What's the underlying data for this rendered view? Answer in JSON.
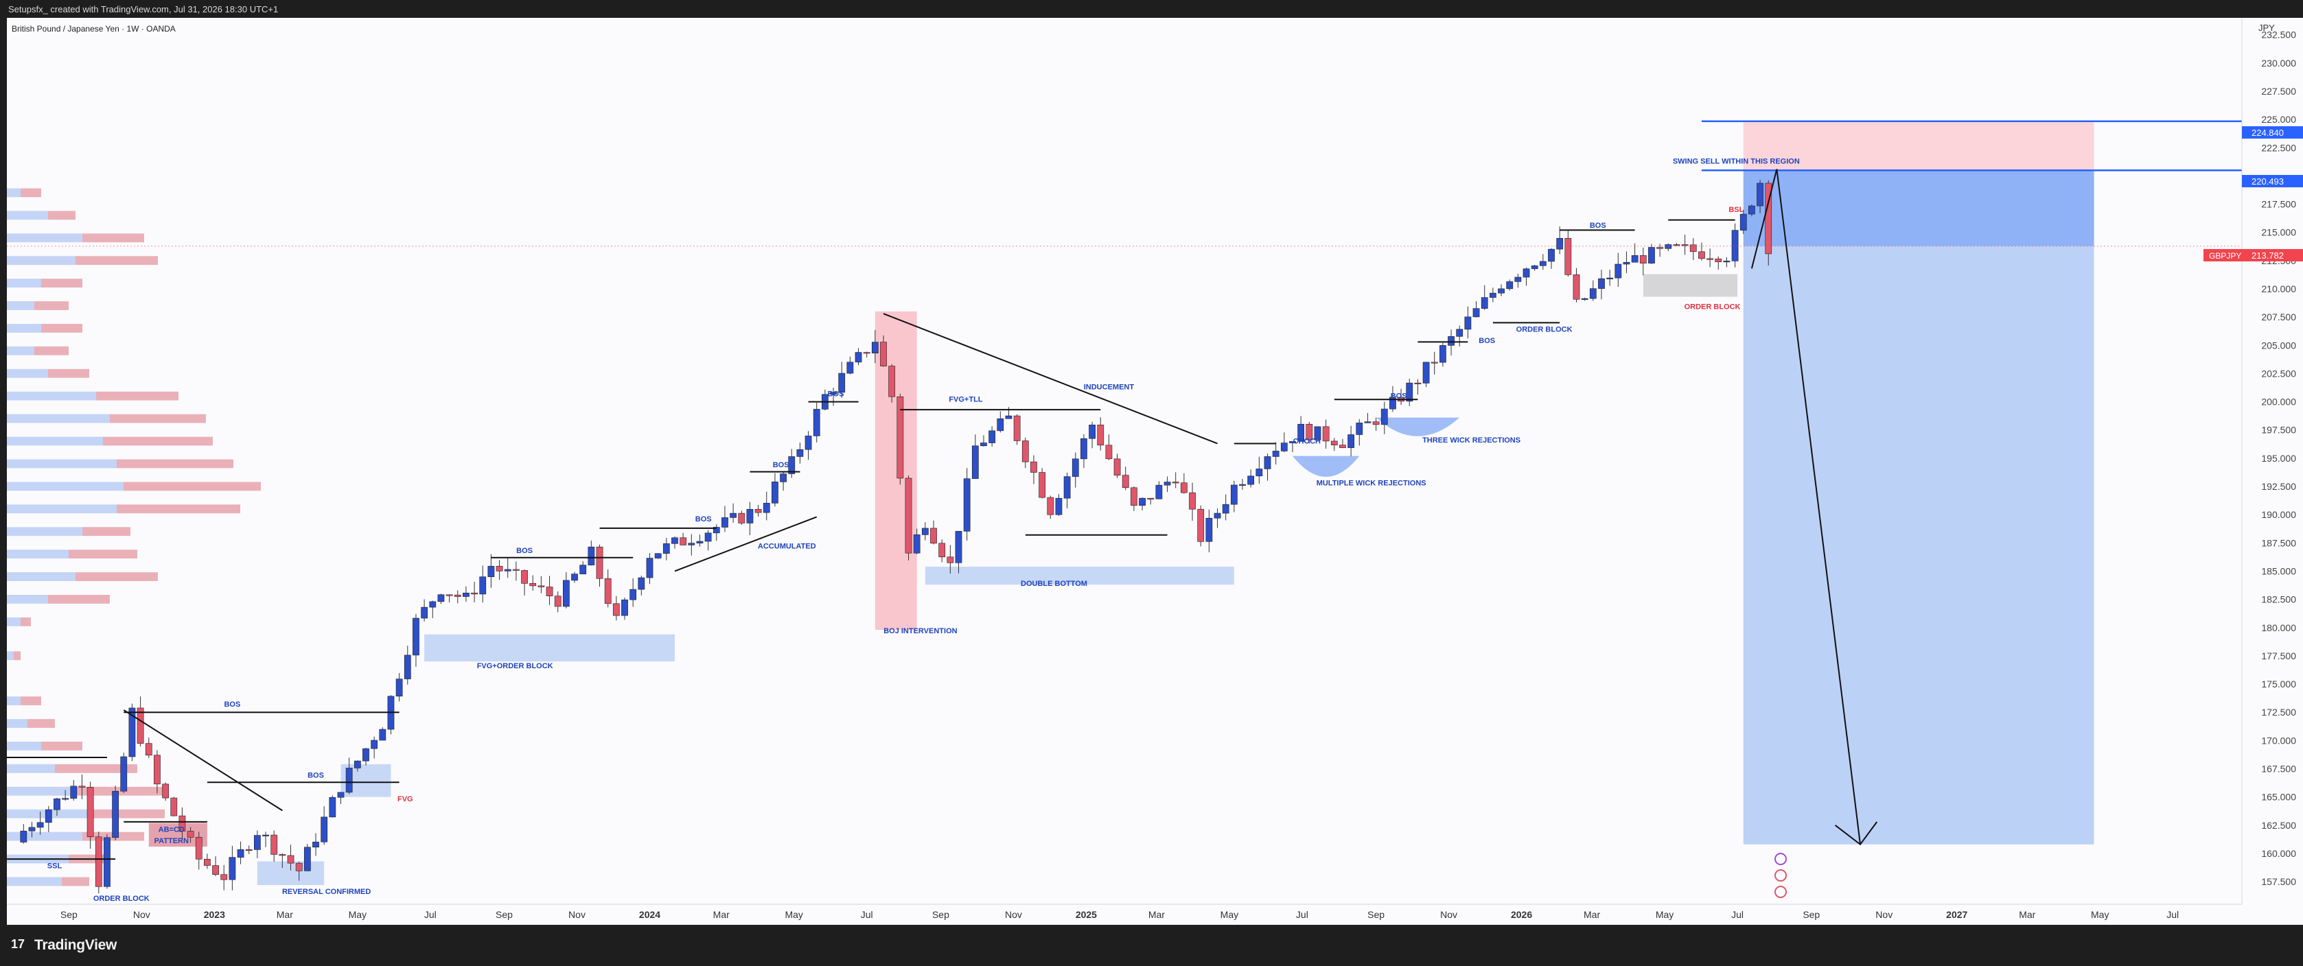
{
  "header": {
    "credit": "Setupsfx_ created with TradingView.com, Jul 31, 2026 18:30 UTC+1"
  },
  "chart_meta": {
    "symbol_title": "British Pound / Japanese Yen · 1W · OANDA",
    "currency": "JPY",
    "ticker": "GBPJPY",
    "last_price": "213.782",
    "level_upper": "224.840",
    "level_lower": "220.493"
  },
  "footer": {
    "brand": "TradingView"
  },
  "colors": {
    "bull": "#2d4fc9",
    "bear": "#e0566a",
    "accent": "#2962ff",
    "label_blue": "#1f43bd",
    "label_red": "#e0323f"
  },
  "chart_data": {
    "type": "candlestick",
    "ylim": [
      155.5,
      234.0
    ],
    "y_ticks": [
      "232.500",
      "230.000",
      "227.500",
      "225.000",
      "222.500",
      "217.500",
      "215.000",
      "212.500",
      "210.000",
      "207.500",
      "205.000",
      "202.500",
      "200.000",
      "197.500",
      "195.000",
      "192.500",
      "190.000",
      "187.500",
      "185.000",
      "182.500",
      "180.000",
      "177.500",
      "175.000",
      "172.500",
      "170.000",
      "167.500",
      "165.000",
      "162.500",
      "160.000",
      "157.500"
    ],
    "x_ticks": [
      {
        "label": "Sep",
        "bold": false
      },
      {
        "label": "Nov",
        "bold": false
      },
      {
        "label": "2023",
        "bold": true
      },
      {
        "label": "Mar",
        "bold": false
      },
      {
        "label": "May",
        "bold": false
      },
      {
        "label": "Jul",
        "bold": false
      },
      {
        "label": "Sep",
        "bold": false
      },
      {
        "label": "Nov",
        "bold": false
      },
      {
        "label": "2024",
        "bold": true
      },
      {
        "label": "Mar",
        "bold": false
      },
      {
        "label": "May",
        "bold": false
      },
      {
        "label": "Jul",
        "bold": false
      },
      {
        "label": "Sep",
        "bold": false
      },
      {
        "label": "Nov",
        "bold": false
      },
      {
        "label": "2025",
        "bold": true
      },
      {
        "label": "Mar",
        "bold": false
      },
      {
        "label": "May",
        "bold": false
      },
      {
        "label": "Jul",
        "bold": false
      },
      {
        "label": "Sep",
        "bold": false
      },
      {
        "label": "Nov",
        "bold": false
      },
      {
        "label": "2026",
        "bold": true
      },
      {
        "label": "Mar",
        "bold": false
      },
      {
        "label": "May",
        "bold": false
      },
      {
        "label": "Jul",
        "bold": false
      },
      {
        "label": "Sep",
        "bold": false
      },
      {
        "label": "Nov",
        "bold": false
      },
      {
        "label": "2027",
        "bold": true
      },
      {
        "label": "Mar",
        "bold": false
      },
      {
        "label": "May",
        "bold": false
      },
      {
        "label": "Jul",
        "bold": false
      }
    ],
    "anchors": [
      [
        "2022-07-25",
        162.0
      ],
      [
        "2022-08-15",
        164.0
      ],
      [
        "2022-09-12",
        166.5
      ],
      [
        "2022-09-26",
        157.5
      ],
      [
        "2022-10-17",
        168.5
      ],
      [
        "2022-10-24",
        172.5
      ],
      [
        "2022-11-14",
        166.0
      ],
      [
        "2022-12-19",
        159.5
      ],
      [
        "2023-01-09",
        158.0
      ],
      [
        "2023-02-06",
        162.0
      ],
      [
        "2023-03-13",
        158.5
      ],
      [
        "2023-04-17",
        166.0
      ],
      [
        "2023-05-22",
        171.5
      ],
      [
        "2023-06-19",
        180.5
      ],
      [
        "2023-07-10",
        183.5
      ],
      [
        "2023-07-31",
        182.5
      ],
      [
        "2023-08-21",
        185.5
      ],
      [
        "2023-09-18",
        184.0
      ],
      [
        "2023-10-16",
        182.5
      ],
      [
        "2023-11-13",
        186.5
      ],
      [
        "2023-12-04",
        180.5
      ],
      [
        "2024-01-01",
        186.5
      ],
      [
        "2024-02-05",
        188.0
      ],
      [
        "2024-03-11",
        189.5
      ],
      [
        "2024-04-01",
        190.5
      ],
      [
        "2024-04-29",
        194.5
      ],
      [
        "2024-05-27",
        200.5
      ],
      [
        "2024-07-08",
        205.5
      ],
      [
        "2024-07-22",
        200.5
      ],
      [
        "2024-08-05",
        186.5
      ],
      [
        "2024-08-19",
        189.5
      ],
      [
        "2024-09-09",
        185.5
      ],
      [
        "2024-09-30",
        196.0
      ],
      [
        "2024-10-28",
        198.5
      ],
      [
        "2024-12-02",
        190.5
      ],
      [
        "2025-01-06",
        198.0
      ],
      [
        "2025-02-10",
        190.5
      ],
      [
        "2025-03-17",
        193.5
      ],
      [
        "2025-04-07",
        188.0
      ],
      [
        "2025-05-05",
        192.5
      ],
      [
        "2025-06-02",
        195.5
      ],
      [
        "2025-06-30",
        197.5
      ],
      [
        "2025-08-04",
        196.5
      ],
      [
        "2025-09-08",
        199.0
      ],
      [
        "2025-10-06",
        202.0
      ],
      [
        "2025-11-03",
        205.5
      ],
      [
        "2025-12-15",
        210.5
      ],
      [
        "2026-02-02",
        214.0
      ],
      [
        "2026-02-16",
        208.5
      ],
      [
        "2026-03-30",
        212.5
      ],
      [
        "2026-05-11",
        213.5
      ],
      [
        "2026-06-22",
        213.0
      ],
      [
        "2026-07-20",
        219.5
      ],
      [
        "2026-07-27",
        213.8
      ]
    ],
    "annotations": [
      {
        "text": "BOS",
        "date": "2023-01-16",
        "price": 173.0,
        "color": "blue"
      },
      {
        "text": "BOS",
        "date": "2023-03-27",
        "price": 166.7,
        "color": "blue"
      },
      {
        "text": "FVG",
        "date": "2023-06-10",
        "price": 164.6,
        "color": "red"
      },
      {
        "text": "AB=CD",
        "date": "2022-11-26",
        "price": 161.9,
        "color": "blue"
      },
      {
        "text": "PATTERN",
        "date": "2022-11-26",
        "price": 160.9,
        "color": "blue"
      },
      {
        "text": "SSL",
        "date": "2022-08-20",
        "price": 158.7,
        "color": "blue"
      },
      {
        "text": "REVERSAL CONFIRMED",
        "date": "2023-04-05",
        "price": 156.4,
        "color": "blue"
      },
      {
        "text": "FVG+ORDER BLOCK",
        "date": "2023-09-10",
        "price": 176.4,
        "color": "blue"
      },
      {
        "text": "BOS",
        "date": "2023-09-18",
        "price": 186.6,
        "color": "blue"
      },
      {
        "text": "BOS",
        "date": "2024-02-15",
        "price": 189.4,
        "color": "blue"
      },
      {
        "text": "ACCUMULATED",
        "date": "2024-04-25",
        "price": 187.0,
        "color": "blue"
      },
      {
        "text": "BOS",
        "date": "2024-04-20",
        "price": 194.2,
        "color": "blue"
      },
      {
        "text": "BOS",
        "date": "2024-06-05",
        "price": 200.5,
        "color": "blue"
      },
      {
        "text": "BOJ INTERVENTION",
        "date": "2024-08-15",
        "price": 179.5,
        "color": "blue"
      },
      {
        "text": "FVG+TLL",
        "date": "2024-09-22",
        "price": 200.0,
        "color": "blue"
      },
      {
        "text": "INDUCEMENT",
        "date": "2025-01-20",
        "price": 201.1,
        "color": "blue"
      },
      {
        "text": "DOUBLE BOTTOM",
        "date": "2024-12-05",
        "price": 183.7,
        "color": "blue"
      },
      {
        "text": "CHOCH",
        "date": "2025-07-05",
        "price": 196.3,
        "color": "blue"
      },
      {
        "text": "MULTIPLE WICK REJECTIONS",
        "date": "2025-08-28",
        "price": 192.6,
        "color": "blue"
      },
      {
        "text": "BOS",
        "date": "2025-09-20",
        "price": 200.3,
        "color": "blue"
      },
      {
        "text": "THREE WICK REJECTIONS",
        "date": "2025-11-20",
        "price": 196.4,
        "color": "blue"
      },
      {
        "text": "BOS",
        "date": "2025-12-03",
        "price": 205.2,
        "color": "blue"
      },
      {
        "text": "ORDER BLOCK",
        "date": "2026-01-20",
        "price": 206.2,
        "color": "blue"
      },
      {
        "text": "BOS",
        "date": "2026-03-06",
        "price": 215.4,
        "color": "blue"
      },
      {
        "text": "ORDER BLOCK",
        "date": "2026-06-10",
        "price": 208.2,
        "color": "red"
      },
      {
        "text": "BSL",
        "date": "2026-06-30",
        "price": 216.8,
        "color": "red"
      },
      {
        "text": "SWING SELL WITHIN THIS REGION",
        "date": "2026-06-30",
        "price": 221.1,
        "color": "blue"
      },
      {
        "text": "ORDER BLOCK",
        "date": "2022-10-15",
        "price": 155.8,
        "color": "blue"
      }
    ]
  }
}
